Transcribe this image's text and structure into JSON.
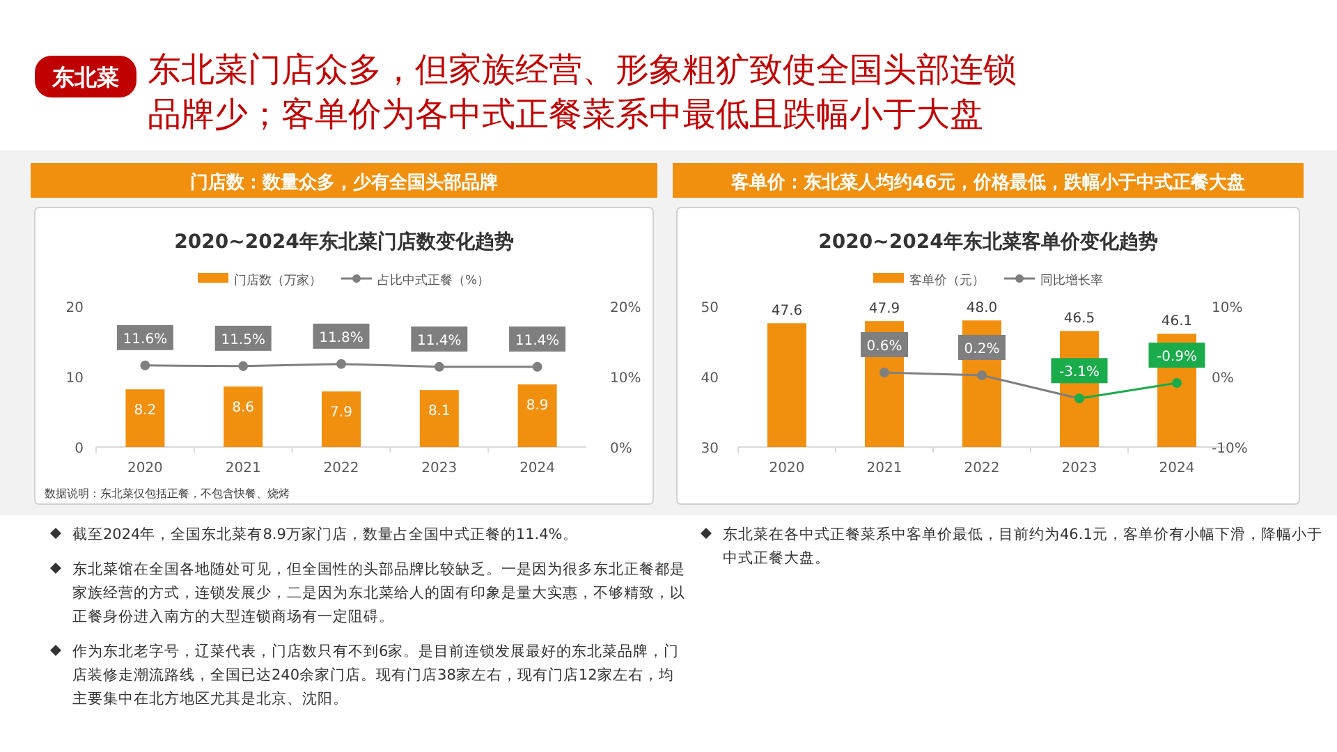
{
  "chart_data": [
    {
      "type": "other",
      "title": "东北菜门店众多，但家族经营、形象粗犷致使全国头部连锁品牌少；客单价为各中式正餐菜系中最低且跌幅小于大盘",
      "annotations": [
        "东北菜"
      ]
    },
    {
      "type": "bar",
      "subtitle": "门店数：数量众多，少有全国头部品牌",
      "title": "2020~2024年东北菜门店数变化趋势",
      "categories": [
        "2020",
        "2021",
        "2022",
        "2023",
        "2024"
      ],
      "series": [
        {
          "name": "门店数（万家）",
          "type": "bar",
          "color": "#f0900e",
          "values": [
            8.2,
            8.6,
            7.9,
            8.1,
            8.9
          ],
          "value_labels": [
            "8.2",
            "8.6",
            "7.9",
            "8.1",
            "8.9"
          ]
        },
        {
          "name": "占比中式正餐（%）",
          "type": "line",
          "axis": "y2",
          "color": "#7f7f7f",
          "values": [
            11.6,
            11.5,
            11.8,
            11.4,
            11.4
          ],
          "value_labels": [
            "11.6%",
            "11.5%",
            "11.8%",
            "11.4%",
            "11.4%"
          ]
        }
      ],
      "ylim": [
        0,
        20
      ],
      "yticks": [
        0,
        10,
        20
      ],
      "y2lim": [
        0,
        20
      ],
      "y2ticks": [
        {
          "value": 0,
          "label": "0%"
        },
        {
          "value": 10,
          "label": "10%"
        },
        {
          "value": 20,
          "label": "20%"
        }
      ],
      "legend": "top",
      "marker": "circle",
      "annotations": [
        "数据说明：东北菜仅包括正餐，不包含快餐、烧烤"
      ]
    },
    {
      "type": "bar",
      "subtitle": "客单价：东北菜人均约46元，价格最低，跌幅小于中式正餐大盘",
      "title": "2020~2024年东北菜客单价变化趋势",
      "categories": [
        "2020",
        "2021",
        "2022",
        "2023",
        "2024"
      ],
      "series": [
        {
          "name": "客单价（元）",
          "type": "bar",
          "color": "#f0900e",
          "values": [
            47.6,
            47.9,
            48.0,
            46.5,
            46.1
          ],
          "value_labels": [
            "47.6",
            "47.9",
            "48.0",
            "46.5",
            "46.1"
          ]
        },
        {
          "name": "同比增长率",
          "type": "line",
          "axis": "y2",
          "color": "#7f7f7f",
          "colors": [
            null,
            "#7f7f7f",
            "#7f7f7f",
            "#1aab4b",
            "#1aab4b"
          ],
          "values": [
            null,
            0.6,
            0.2,
            -3.1,
            -0.9
          ],
          "value_labels": [
            null,
            "0.6%",
            "0.2%",
            "-3.1%",
            "-0.9%"
          ]
        }
      ],
      "ylim": [
        30,
        50
      ],
      "yticks": [
        30,
        40,
        50
      ],
      "y2lim": [
        -10,
        10
      ],
      "y2ticks": [
        {
          "value": -10,
          "label": "-10%"
        },
        {
          "value": 0,
          "label": "0%"
        },
        {
          "value": 10,
          "label": "10%"
        }
      ],
      "legend": "top",
      "marker": "circle"
    },
    {
      "type": "other",
      "annotations": [
        "截至2024年，全国东北菜有8.9万家门店，数量占全国中式正餐的11.4%。",
        "东北菜馆在全国各地随处可见，但全国性的头部品牌比较缺乏。一是因为很多东北正餐都是家族经营的方式，连锁发展少，二是因为东北菜给人的固有印象是量大实惠，不够精致，以正餐身份进入南方的大型连锁商场有一定阻碍。",
        "作为东北老字号，辽菜代表，门店数只有不到6家。是目前连锁发展最好的东北菜品牌，门店装修走潮流路线，全国已达240余家门店。现有门店38家左右，现有门店12家左右，均主要集中在北方地区尤其是北京、沈阳。"
      ]
    },
    {
      "type": "other",
      "annotations": [
        "东北菜在各中式正餐菜系中客单价最低，目前约为46.1元，客单价有小幅下滑，降幅小于中式正餐大盘。"
      ]
    }
  ]
}
